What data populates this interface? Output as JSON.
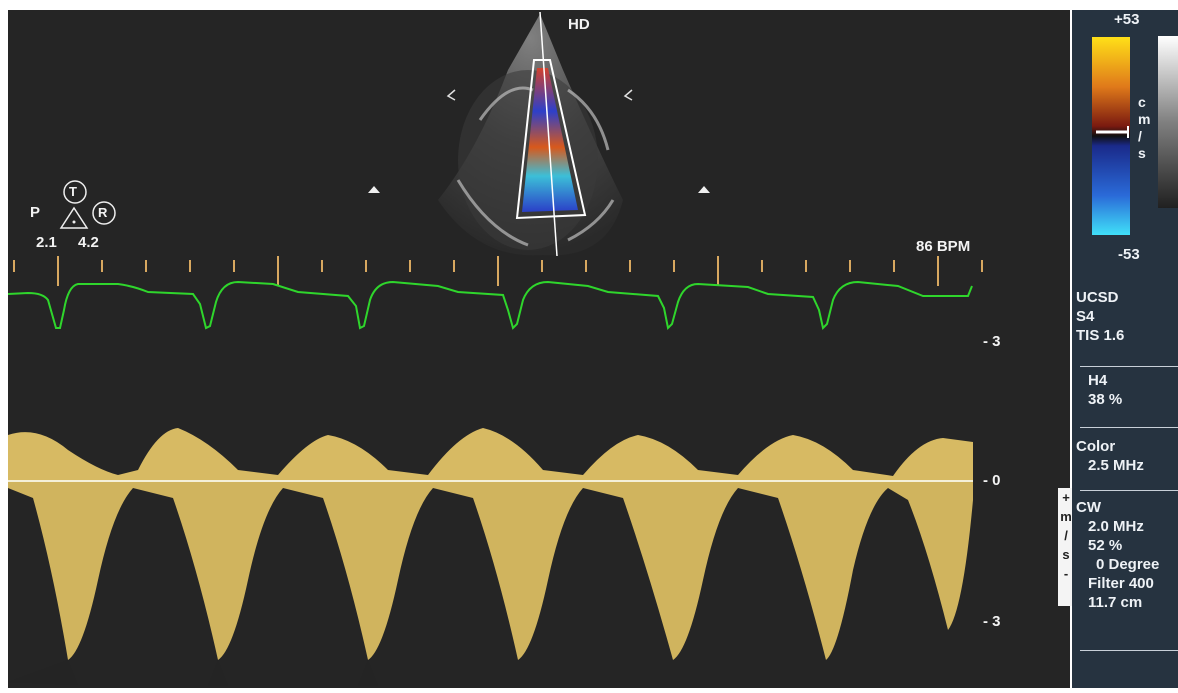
{
  "header": {
    "probe_label": "HD",
    "heart_rate": "86 BPM"
  },
  "orientation": {
    "p_label": "P",
    "t_label": "T",
    "r_label": "R",
    "val_left": "2.1",
    "val_right": "4.2"
  },
  "color_scale": {
    "top": "+53",
    "bottom": "-53",
    "unit_chars": [
      "c",
      "m",
      "/",
      "s"
    ]
  },
  "velocity_scale": {
    "upper": "- 3",
    "zero": "- 0",
    "lower": "- 3",
    "strip_chars": [
      "+",
      "m",
      "/",
      "s",
      "-"
    ]
  },
  "sidebar": {
    "system": [
      "UCSD",
      "S4",
      "TIS 1.6"
    ],
    "harmonic": [
      "H4",
      "38 %"
    ],
    "color_mode": [
      "Color",
      "2.5 MHz"
    ],
    "cw": [
      "CW",
      "2.0 MHz",
      "52 %",
      "0 Degree",
      "Filter 400",
      "11.7 cm"
    ]
  },
  "colors": {
    "ecg_trace": "#2fd62c",
    "doppler_signal": "#e6c768",
    "panel_bg": "#263340",
    "image_bg": "#252525"
  }
}
